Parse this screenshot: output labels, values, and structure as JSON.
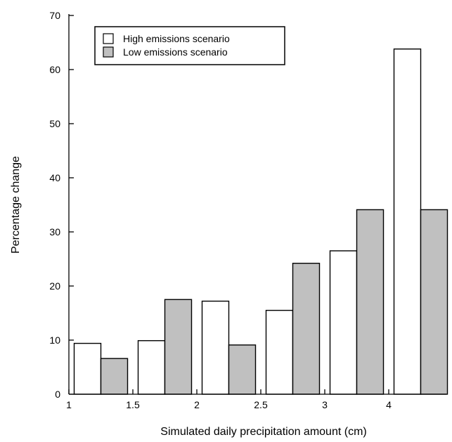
{
  "chart_data": {
    "type": "bar",
    "title": "",
    "xlabel": "Simulated daily precipitation amount (cm)",
    "ylabel": "Percentage change",
    "ylim": [
      0,
      70
    ],
    "y_ticks": [
      0,
      10,
      20,
      30,
      40,
      50,
      60,
      70
    ],
    "x_tick_labels": [
      "1",
      "1.5",
      "2",
      "2.5",
      "3",
      "4"
    ],
    "grid": false,
    "legend_position": "top-left",
    "bin_count": 6,
    "series": [
      {
        "name": "High emissions scenario",
        "color": "#ffffff",
        "values": [
          9.4,
          9.9,
          17.2,
          15.5,
          26.5,
          63.8
        ]
      },
      {
        "name": "Low emissions scenario",
        "color": "#c0c0c0",
        "values": [
          6.6,
          17.5,
          9.1,
          24.2,
          34.1,
          34.1
        ]
      }
    ]
  }
}
